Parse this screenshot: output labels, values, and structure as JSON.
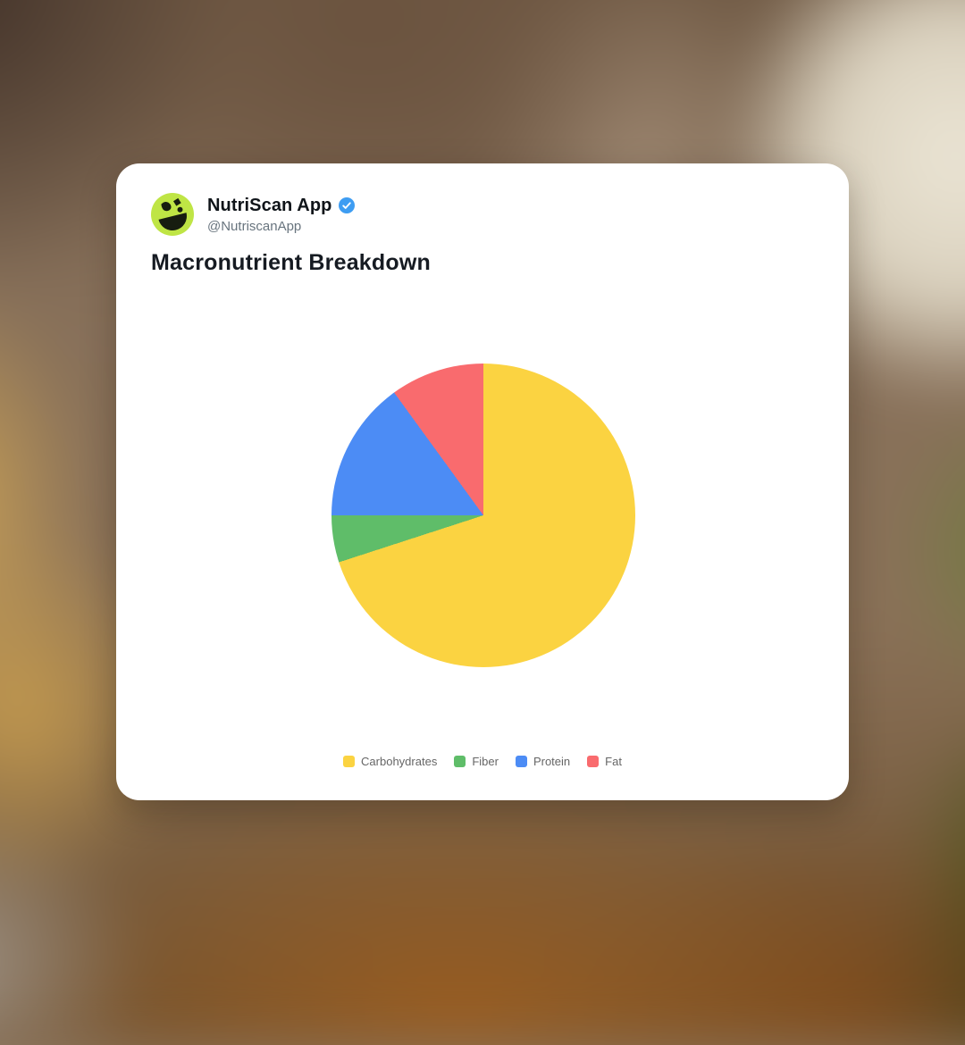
{
  "card": {
    "author": {
      "name": "NutriScan App",
      "handle": "@NutriscanApp",
      "verified": true
    },
    "title": "Macronutrient Breakdown"
  },
  "chart_data": {
    "type": "pie",
    "title": "Macronutrient Breakdown",
    "labels": [
      "Carbohydrates",
      "Fiber",
      "Protein",
      "Fat"
    ],
    "values": [
      70,
      5,
      15,
      10
    ],
    "values_note": "percent of total, estimated from slice angles (252deg, 18deg, 54deg, 36deg)",
    "colors": [
      "#FBD341",
      "#5FBD69",
      "#4C8CF5",
      "#F96B6E"
    ],
    "start_angle": "top",
    "direction": "clockwise",
    "legend_position": "bottom"
  },
  "theme": {
    "card_bg": "#FFFFFF",
    "avatar_bg": "#BFE545",
    "avatar_icon_color": "#171D10",
    "verified_badge_color": "#3E9DF2",
    "name_color": "#0F1419",
    "handle_color": "#68747E",
    "title_color": "#161B22",
    "legend_text_color": "#666666"
  }
}
